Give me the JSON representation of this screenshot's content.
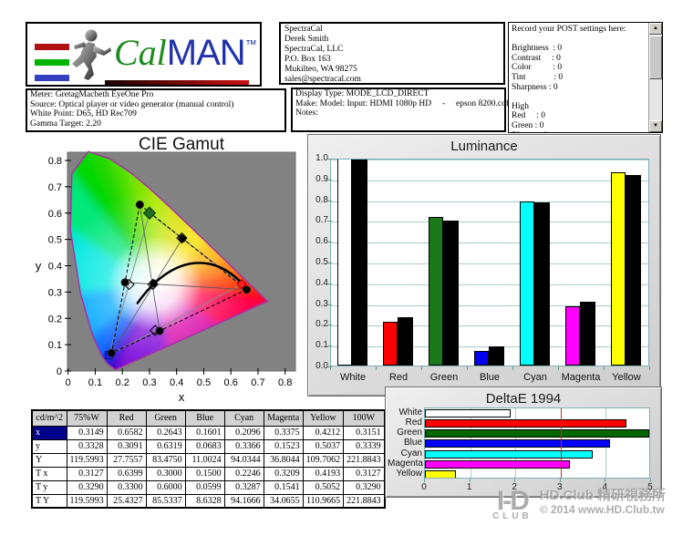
{
  "header": {
    "logo": {
      "cal": "Cal",
      "man": "MAN",
      "tm": "TM",
      "bar_colors": [
        "#b01010",
        "#00b400",
        "#3340c0"
      ]
    },
    "contact": {
      "lines": [
        "SpectraCal",
        "Derek Smith",
        "SpectraCal, LLC",
        "P.O. Box 163",
        "Mukilteo, WA 98275",
        "sales@spectracal.com"
      ]
    },
    "meter": {
      "lines": [
        "Meter: GretagMacbeth EyeOne Pro",
        "Source: Optical player or video generator (manual control)",
        "White Point: D65, HD Rec709",
        "Gamma Target: 2.20"
      ]
    },
    "display": {
      "lines": [
        "Display Type: MODE_LCD_DIRECT",
        "Make: Model: Input: HDMI 1080p HD     -     epson 8200.cdf",
        "Notes:"
      ]
    },
    "post": {
      "title": "Record your POST settings here:",
      "lines": [
        "",
        "Brightness  : 0",
        "Contrast     : 0",
        "Color          : 0",
        "Tint             : 0",
        "Sharpness : 0",
        "",
        "High",
        "Red     : 0",
        "Green : 0",
        "Blue     : 0"
      ],
      "icons": {
        "scroll_up": "▲",
        "scroll_down": "▼"
      }
    }
  },
  "chart_data": [
    {
      "type": "scatter",
      "title": "CIE Gamut",
      "xlabel": "x",
      "ylabel": "y",
      "xlim": [
        0,
        0.84
      ],
      "ylim": [
        0,
        0.84
      ],
      "xticks": [
        "0",
        "0.1",
        "0.2",
        "0.3",
        "0.4",
        "0.5",
        "0.6",
        "0.7",
        "0.8"
      ],
      "yticks": [
        "0",
        "0.1",
        "0.2",
        "0.3",
        "0.4",
        "0.5",
        "0.6",
        "0.7",
        "0.8"
      ],
      "measured": {
        "White": [
          0.3149,
          0.3328
        ],
        "Red": [
          0.6582,
          0.3091
        ],
        "Green": [
          0.2643,
          0.6319
        ],
        "Blue": [
          0.1601,
          0.0683
        ],
        "Cyan": [
          0.2096,
          0.3366
        ],
        "Magenta": [
          0.3375,
          0.1523
        ],
        "Yellow": [
          0.4212,
          0.5037
        ]
      },
      "targets": {
        "White": [
          0.3127,
          0.329
        ],
        "Red": [
          0.6399,
          0.33
        ],
        "Green": [
          0.3,
          0.6
        ],
        "Blue": [
          0.15,
          0.0599
        ],
        "Cyan": [
          0.2246,
          0.3287
        ],
        "Magenta": [
          0.3209,
          0.1541
        ],
        "Yellow": [
          0.4193,
          0.5052
        ]
      },
      "planckian_locus": {
        "start": [
          0.256,
          0.258
        ],
        "peak": [
          0.46,
          0.41
        ],
        "end": [
          0.655,
          0.316
        ]
      },
      "spectral_locus": [
        [
          0.1741,
          0.005
        ],
        [
          0.144,
          0.0297
        ],
        [
          0.1241,
          0.0578
        ],
        [
          0.0913,
          0.1327
        ],
        [
          0.0454,
          0.295
        ],
        [
          0.0082,
          0.5384
        ],
        [
          0.0139,
          0.7502
        ],
        [
          0.0743,
          0.8338
        ],
        [
          0.1547,
          0.8059
        ],
        [
          0.2296,
          0.7543
        ],
        [
          0.3016,
          0.6923
        ],
        [
          0.3731,
          0.6245
        ],
        [
          0.4441,
          0.5547
        ],
        [
          0.5125,
          0.4866
        ],
        [
          0.5752,
          0.4242
        ],
        [
          0.627,
          0.3725
        ],
        [
          0.6915,
          0.3083
        ],
        [
          0.7347,
          0.2653
        ],
        [
          0.55,
          0.179
        ],
        [
          0.365,
          0.093
        ]
      ],
      "locus_colors": [
        "#2800c8",
        "#0028ff",
        "#0064ff",
        "#00a8ff",
        "#00e8e0",
        "#00e87a",
        "#00d800",
        "#20d800",
        "#50e000",
        "#86e400",
        "#b4e800",
        "#d8e000",
        "#f8e000",
        "#ffb400",
        "#ff7800",
        "#ff3c00",
        "#ff0000",
        "#ff0050",
        "#d800a8",
        "#7800d8"
      ]
    },
    {
      "type": "bar",
      "title": "Luminance",
      "categories": [
        "White",
        "Red",
        "Green",
        "Blue",
        "Cyan",
        "Magenta",
        "Yellow"
      ],
      "series": [
        {
          "name": "target",
          "values": [
            1.0,
            0.2127,
            0.7152,
            0.0722,
            0.7873,
            0.2848,
            0.9278
          ],
          "colors": [
            "#ffffff",
            "#ff0000",
            "#1a7a1a",
            "#0000ee",
            "#00ffff",
            "#ff00ff",
            "#ffff00"
          ]
        },
        {
          "name": "measured",
          "values": [
            1.0,
            0.2321,
            0.698,
            0.092,
            0.7863,
            0.3077,
            0.9173
          ],
          "color": "#000000"
        }
      ],
      "ylim": [
        0,
        1.0
      ],
      "yticks": [
        "0.0",
        "0.1",
        "0.2",
        "0.3",
        "0.4",
        "0.5",
        "0.6",
        "0.7",
        "0.8",
        "0.9",
        "1.0"
      ],
      "grid": true,
      "legend": "none"
    },
    {
      "type": "bar-horizontal",
      "title": "DeltaE 1994",
      "categories": [
        "White",
        "Red",
        "Green",
        "Blue",
        "Cyan",
        "Magenta",
        "Yellow"
      ],
      "values": [
        1.9,
        4.45,
        4.95,
        4.1,
        3.7,
        3.2,
        0.68
      ],
      "colors": [
        "#ffffff",
        "#ff0000",
        "#006600",
        "#0000ff",
        "#00ffff",
        "#ff00ff",
        "#ffff00"
      ],
      "xlim": [
        0,
        5
      ],
      "xticks": [
        "0",
        "1",
        "2",
        "3",
        "4",
        "5"
      ],
      "threshold_line_x": 3,
      "edge_line_x": 5,
      "grid": true
    }
  ],
  "table": {
    "columns": [
      "cd/m^2",
      "75%W",
      "Red",
      "Green",
      "Blue",
      "Cyan",
      "Magenta",
      "Yellow",
      "100W"
    ],
    "rows": [
      {
        "label": "x",
        "selected": true,
        "values": [
          "0.3149",
          "0.6582",
          "0.2643",
          "0.1601",
          "0.2096",
          "0.3375",
          "0.4212",
          "0.3151"
        ]
      },
      {
        "label": "y",
        "selected": false,
        "values": [
          "0.3328",
          "0.3091",
          "0.6319",
          "0.0683",
          "0.3366",
          "0.1523",
          "0.5037",
          "0.3339"
        ]
      },
      {
        "label": "Y",
        "selected": false,
        "values": [
          "119.5993",
          "27.7557",
          "83.4750",
          "11.0024",
          "94.0344",
          "36.8044",
          "109.7062",
          "221.8843"
        ]
      },
      {
        "label": "T x",
        "selected": false,
        "values": [
          "0.3127",
          "0.6399",
          "0.3000",
          "0.1500",
          "0.2246",
          "0.3209",
          "0.4193",
          "0.3127"
        ]
      },
      {
        "label": "T y",
        "selected": false,
        "values": [
          "0.3290",
          "0.3300",
          "0.6000",
          "0.0599",
          "0.3287",
          "0.1541",
          "0.5052",
          "0.3290"
        ]
      },
      {
        "label": "T Y",
        "selected": false,
        "values": [
          "119.5993",
          "25.4327",
          "85.5337",
          "8.6328",
          "94.1666",
          "34.0655",
          "110.9665",
          "221.8843"
        ]
      }
    ]
  },
  "watermark": {
    "logo_top": "I-D",
    "logo_bottom": "CLUB",
    "line1": "HD.Club 精研視務所",
    "line2": "© 2014  www.HD.Club.tw"
  }
}
